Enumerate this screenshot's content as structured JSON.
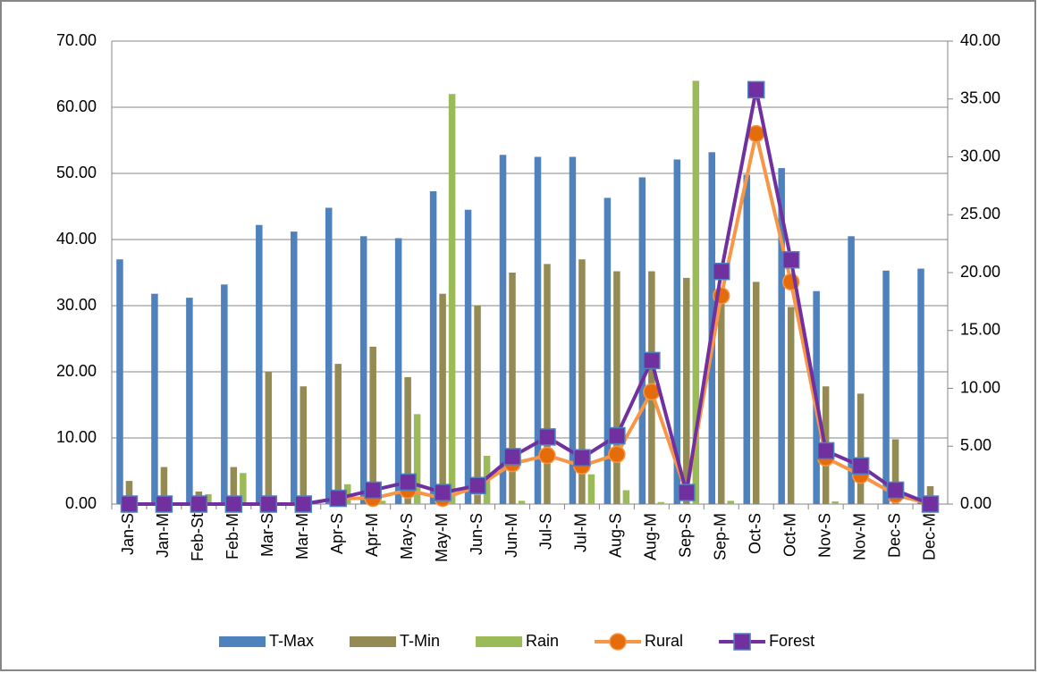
{
  "chart_data": {
    "type": "bar-line",
    "categories": [
      "Jan-S",
      "Jan-M",
      "Feb-St",
      "Feb-M",
      "Mar-S",
      "Mar-M",
      "Apr-S",
      "Apr-M",
      "May-S",
      "May-M",
      "Jun-S",
      "Jun-M",
      "Jul-S",
      "Jul-M",
      "Aug-S",
      "Aug-M",
      "Sep-S",
      "Sep-M",
      "Oct-S",
      "Oct-M",
      "Nov-S",
      "Nov-M",
      "Dec-S",
      "Dec-M"
    ],
    "series": [
      {
        "name": "T-Max",
        "type": "bar",
        "color": "#4f81bd",
        "values": [
          37.0,
          31.8,
          31.2,
          33.2,
          42.2,
          41.2,
          44.8,
          40.5,
          40.2,
          47.3,
          44.5,
          52.8,
          52.5,
          52.5,
          46.3,
          49.4,
          52.1,
          53.2,
          49.8,
          50.8,
          32.2,
          40.5,
          35.3,
          35.6
        ]
      },
      {
        "name": "T-Min",
        "type": "bar",
        "color": "#948a54",
        "values": [
          3.5,
          5.6,
          1.9,
          5.6,
          20.0,
          17.8,
          21.2,
          23.8,
          19.2,
          31.8,
          30.0,
          35.0,
          36.3,
          37.0,
          35.2,
          35.2,
          34.2,
          31.0,
          33.6,
          29.8,
          17.8,
          16.7,
          9.8,
          2.7
        ]
      },
      {
        "name": "Rain",
        "type": "bar",
        "color": "#9bbb59",
        "values": [
          0,
          0,
          1.5,
          4.7,
          0,
          0,
          3.0,
          0.5,
          13.6,
          62.0,
          7.3,
          0.5,
          0,
          4.5,
          2.1,
          0.3,
          64.0,
          0.5,
          0,
          0,
          0.4,
          0,
          0,
          0
        ]
      },
      {
        "name": "Rural",
        "type": "line",
        "axis": "y2",
        "color": "#f79646",
        "marker": "circle",
        "marker_color": "#e46c0a",
        "values": [
          0,
          0,
          0,
          0,
          0,
          0,
          0.5,
          0.5,
          1.2,
          0.5,
          1.5,
          3.5,
          4.2,
          3.3,
          4.3,
          9.7,
          1.0,
          18.0,
          32.0,
          19.2,
          4.0,
          2.5,
          0.8,
          0
        ]
      },
      {
        "name": "Forest",
        "type": "line",
        "axis": "y2",
        "color": "#7030a0",
        "marker": "square",
        "marker_color": "#7030a0",
        "values": [
          0,
          0,
          0,
          0,
          0,
          0,
          0.5,
          1.2,
          1.9,
          1.0,
          1.6,
          4.1,
          5.8,
          4.0,
          5.9,
          12.4,
          1.0,
          20.1,
          35.8,
          21.1,
          4.6,
          3.3,
          1.2,
          0
        ]
      }
    ],
    "ylim": [
      0,
      70
    ],
    "yticks": [
      {
        "value": 0,
        "label": "0.00"
      },
      {
        "value": 10,
        "label": "10.00"
      },
      {
        "value": 20,
        "label": "20.00"
      },
      {
        "value": 30,
        "label": "30.00"
      },
      {
        "value": 40,
        "label": "40.00"
      },
      {
        "value": 50,
        "label": "50.00"
      },
      {
        "value": 60,
        "label": "60.00"
      },
      {
        "value": 70,
        "label": "70.00"
      }
    ],
    "y2lim": [
      0,
      40
    ],
    "y2ticks": [
      {
        "value": 0,
        "label": "0.00"
      },
      {
        "value": 5,
        "label": "5.00"
      },
      {
        "value": 10,
        "label": "10.00"
      },
      {
        "value": 15,
        "label": "15.00"
      },
      {
        "value": 20,
        "label": "20.00"
      },
      {
        "value": 25,
        "label": "25.00"
      },
      {
        "value": 30,
        "label": "30.00"
      },
      {
        "value": 35,
        "label": "35.00"
      },
      {
        "value": 40,
        "label": "40.00"
      }
    ],
    "grid": true,
    "legend": "bottom"
  }
}
